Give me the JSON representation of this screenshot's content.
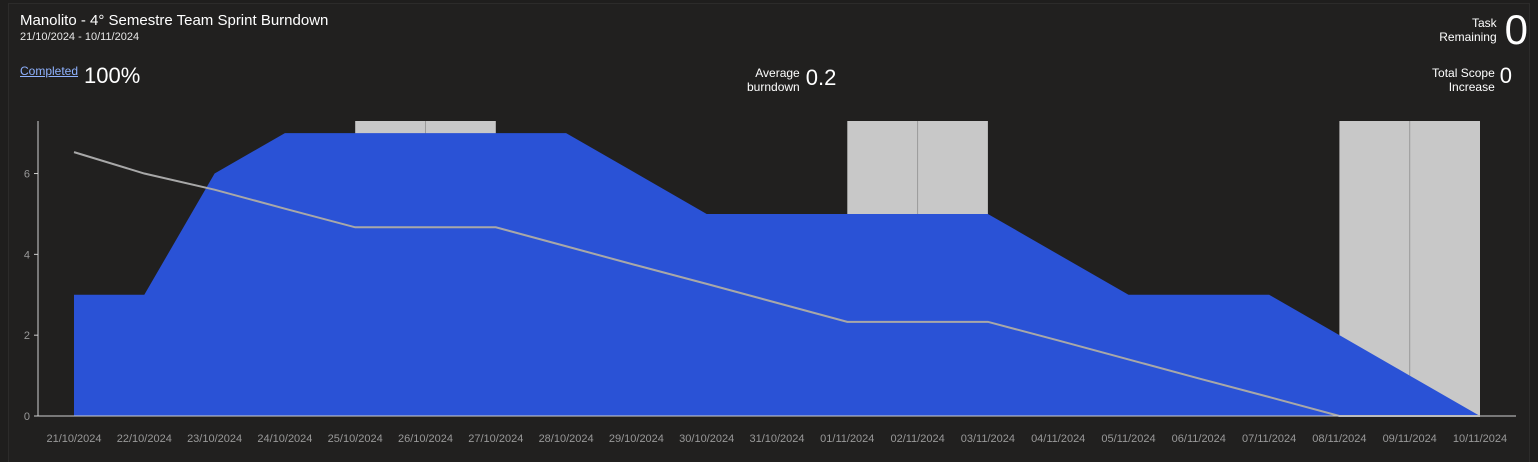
{
  "header": {
    "title": "Manolito - 4° Semestre Team Sprint Burndown",
    "date_range": "21/10/2024 - 10/11/2024"
  },
  "stats": {
    "completed_label": "Completed",
    "completed_value": "100%",
    "avg_label_line1": "Average",
    "avg_label_line2": "burndown",
    "avg_value": "0.2",
    "task_label_line1": "Task",
    "task_label_line2": "Remaining",
    "task_value": "0",
    "scope_label_line1": "Total Scope",
    "scope_label_line2": "Increase",
    "scope_value": "0"
  },
  "colors": {
    "remaining_area": "#2a52d6",
    "weekend_bands": "#c8c8c8",
    "ideal_line": "#a8a8a8",
    "axis": "#d0d0d0"
  },
  "chart_data": {
    "type": "area",
    "categories": [
      "21/10/2024",
      "22/10/2024",
      "23/10/2024",
      "24/10/2024",
      "25/10/2024",
      "26/10/2024",
      "27/10/2024",
      "28/10/2024",
      "29/10/2024",
      "30/10/2024",
      "31/10/2024",
      "01/11/2024",
      "02/11/2024",
      "03/11/2024",
      "04/11/2024",
      "05/11/2024",
      "06/11/2024",
      "07/11/2024",
      "08/11/2024",
      "09/11/2024",
      "10/11/2024"
    ],
    "series": [
      {
        "values": [
          3,
          3,
          6,
          7,
          7,
          7,
          7,
          7,
          6,
          5,
          5,
          5,
          5,
          5,
          4,
          3,
          3,
          3,
          2,
          1,
          0
        ]
      },
      {
        "values": [
          6.53,
          6.0,
          5.6,
          5.13,
          4.67,
          4.67,
          4.67,
          4.2,
          3.73,
          3.27,
          2.8,
          2.33,
          2.33,
          2.33,
          1.87,
          1.4,
          0.93,
          0.47,
          0,
          0,
          0
        ]
      }
    ],
    "weekend_bands": [
      {
        "from": "25/10/2024",
        "to": "27/10/2024"
      },
      {
        "from": "01/11/2024",
        "to": "03/11/2024"
      },
      {
        "from": "08/11/2024",
        "to": "10/11/2024"
      }
    ],
    "yticks": [
      0,
      2,
      4,
      6
    ],
    "ylim": [
      0,
      7.3
    ],
    "grid": false,
    "legend": "none"
  }
}
